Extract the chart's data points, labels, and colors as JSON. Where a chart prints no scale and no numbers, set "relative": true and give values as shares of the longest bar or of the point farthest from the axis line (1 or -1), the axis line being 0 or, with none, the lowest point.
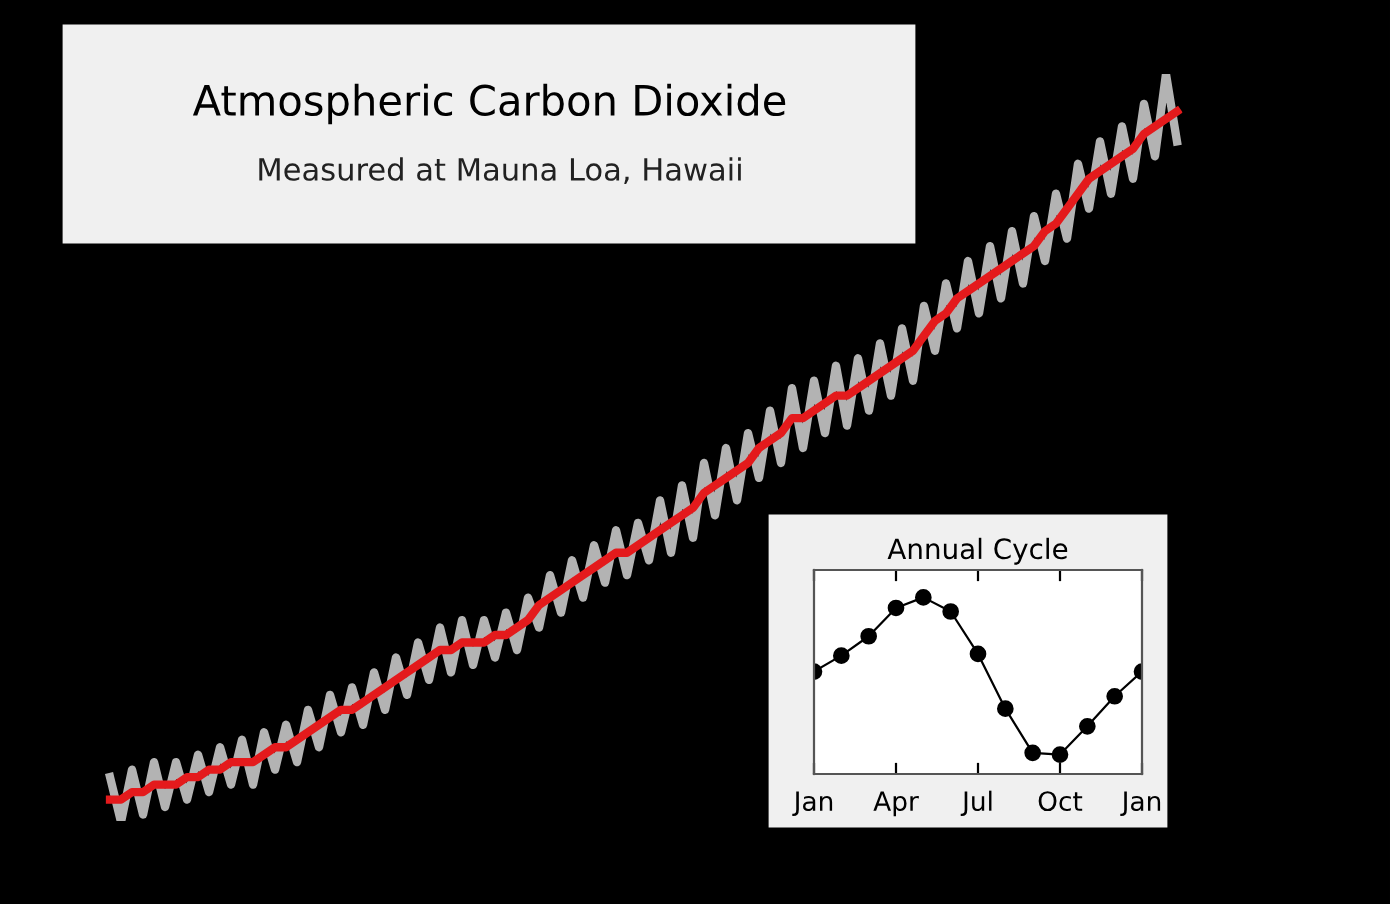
{
  "chart_data": [
    {
      "type": "line",
      "title": "Atmospheric Carbon Dioxide",
      "subtitle": "Measured at Mauna Loa, Hawaii",
      "relative": true,
      "tick_labels": false,
      "categories": [
        null,
        null,
        null,
        null,
        null,
        null,
        null,
        null,
        null,
        null,
        null,
        null,
        null,
        null,
        null,
        null,
        null,
        null,
        null,
        null,
        null,
        null,
        null,
        null,
        null,
        null,
        null,
        null,
        null,
        null,
        null,
        null,
        null,
        null,
        null,
        null,
        null,
        null,
        null,
        null,
        null,
        null,
        null,
        null,
        null,
        null,
        null,
        null,
        null,
        null,
        null,
        null,
        null,
        null,
        null,
        null,
        null,
        null,
        null,
        null,
        null,
        null,
        null,
        null,
        null,
        null,
        null,
        null,
        null,
        null,
        null,
        null,
        null,
        null,
        null,
        null,
        null,
        null,
        null,
        null,
        null,
        null,
        null,
        null,
        null,
        null,
        null,
        null,
        null,
        null,
        null,
        null,
        null,
        null,
        null,
        null,
        null,
        null
      ],
      "series": [
        {
          "color": "#b3b3b3",
          "values": [
            0.06,
            0.0,
            0.07,
            0.01,
            0.08,
            0.02,
            0.08,
            0.03,
            0.09,
            0.04,
            0.1,
            0.05,
            0.11,
            0.05,
            0.12,
            0.07,
            0.13,
            0.08,
            0.15,
            0.1,
            0.17,
            0.12,
            0.18,
            0.13,
            0.2,
            0.15,
            0.22,
            0.17,
            0.24,
            0.19,
            0.26,
            0.2,
            0.27,
            0.21,
            0.27,
            0.22,
            0.28,
            0.23,
            0.3,
            0.26,
            0.33,
            0.28,
            0.35,
            0.3,
            0.37,
            0.32,
            0.39,
            0.33,
            0.4,
            0.35,
            0.43,
            0.36,
            0.45,
            0.38,
            0.48,
            0.41,
            0.5,
            0.43,
            0.52,
            0.46,
            0.55,
            0.48,
            0.58,
            0.5,
            0.59,
            0.52,
            0.61,
            0.53,
            0.62,
            0.55,
            0.64,
            0.57,
            0.66,
            0.59,
            0.69,
            0.63,
            0.72,
            0.66,
            0.75,
            0.68,
            0.77,
            0.7,
            0.79,
            0.72,
            0.81,
            0.75,
            0.84,
            0.78,
            0.88,
            0.82,
            0.91,
            0.84,
            0.93,
            0.86,
            0.96,
            0.89,
            1.0,
            0.91
          ]
        },
        {
          "color": "#e41a1c",
          "values": [
            0.03,
            0.03,
            0.04,
            0.04,
            0.05,
            0.05,
            0.05,
            0.06,
            0.06,
            0.07,
            0.07,
            0.08,
            0.08,
            0.08,
            0.09,
            0.1,
            0.1,
            0.11,
            0.12,
            0.13,
            0.14,
            0.15,
            0.15,
            0.16,
            0.17,
            0.18,
            0.19,
            0.2,
            0.21,
            0.22,
            0.23,
            0.23,
            0.24,
            0.24,
            0.24,
            0.25,
            0.25,
            0.26,
            0.27,
            0.29,
            0.3,
            0.31,
            0.32,
            0.33,
            0.34,
            0.35,
            0.36,
            0.36,
            0.37,
            0.38,
            0.39,
            0.4,
            0.41,
            0.42,
            0.44,
            0.45,
            0.46,
            0.47,
            0.48,
            0.5,
            0.51,
            0.52,
            0.54,
            0.54,
            0.55,
            0.56,
            0.57,
            0.57,
            0.58,
            0.59,
            0.6,
            0.61,
            0.62,
            0.63,
            0.65,
            0.67,
            0.68,
            0.7,
            0.71,
            0.72,
            0.73,
            0.74,
            0.75,
            0.76,
            0.77,
            0.79,
            0.8,
            0.82,
            0.84,
            0.86,
            0.87,
            0.88,
            0.89,
            0.9,
            0.92,
            0.93,
            0.94,
            0.95
          ]
        }
      ]
    },
    {
      "type": "line",
      "title": "Annual Cycle",
      "relative": true,
      "tick_labels": "x",
      "marker": "circle",
      "categories": [
        "Jan",
        null,
        null,
        "Apr",
        null,
        null,
        "Jul",
        null,
        null,
        "Oct",
        null,
        null,
        "Jan"
      ],
      "series": [
        {
          "color": "#000000",
          "values": [
            0.58,
            0.67,
            0.78,
            0.94,
            1.0,
            0.92,
            0.68,
            0.37,
            0.12,
            0.11,
            0.27,
            0.44,
            0.58
          ]
        }
      ]
    }
  ]
}
